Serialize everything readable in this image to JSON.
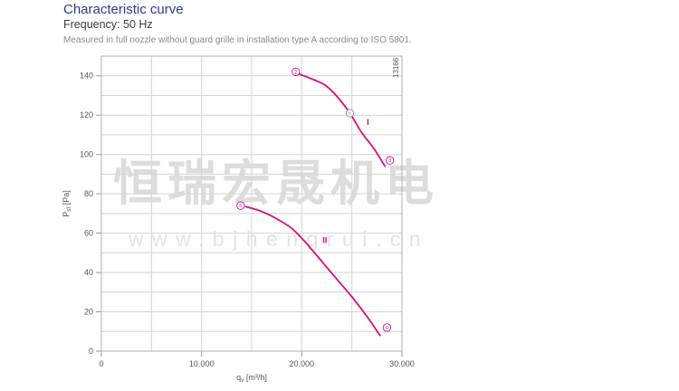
{
  "header": {
    "title": "Characteristic curve",
    "subtitle": "Frequency: 50 Hz",
    "note": "Measured in full nozzle without guard grille in installation type A according to ISO 5801."
  },
  "watermark": {
    "cjk": "恒瑞宏晟机电",
    "url": "www.bjhengrui.cn",
    "color_cjk": "#d8d8d8",
    "color_url": "#e0e0e0"
  },
  "chart_data": {
    "type": "line",
    "xlabel": "qv [m³/h]",
    "ylabel": "Psf [Pa]",
    "xlabel_parts": {
      "base": "q",
      "sub": "v",
      "rest": " [m³/h]"
    },
    "ylabel_parts": {
      "base": "P",
      "sub": "sf",
      "rest": " [Pa]"
    },
    "xlim": [
      0,
      30000
    ],
    "ylim": [
      0,
      150
    ],
    "x_grid_step": 5000,
    "y_grid_step": 10,
    "x_major_ticks": [
      0,
      10000,
      20000,
      30000
    ],
    "x_tick_labels": [
      "0",
      "10.000",
      "20.000",
      "30.000"
    ],
    "y_major_ticks": [
      0,
      20,
      40,
      60,
      80,
      100,
      120,
      140
    ],
    "grid": true,
    "figure_number": "13166",
    "colors": {
      "curve": "#d40f7d",
      "grid": "#d4d4d4",
      "border": "#b0b0b0",
      "axis": "#999999",
      "axis_text": "#555555",
      "title_blue": "#2b3a8f"
    },
    "series": [
      {
        "name": "I",
        "label_pos": [
          26600,
          115
        ],
        "points": [
          [
            19700,
            141
          ],
          [
            21200,
            138
          ],
          [
            22400,
            135
          ],
          [
            23600,
            129
          ],
          [
            24800,
            121
          ],
          [
            26000,
            111
          ],
          [
            27200,
            103
          ],
          [
            28300,
            94
          ]
        ]
      },
      {
        "name": "II",
        "label_pos": [
          22300,
          55
        ],
        "points": [
          [
            14400,
            73.5
          ],
          [
            16000,
            71
          ],
          [
            17600,
            67
          ],
          [
            19100,
            62
          ],
          [
            20600,
            54
          ],
          [
            22100,
            45
          ],
          [
            23600,
            36
          ],
          [
            25100,
            27
          ],
          [
            26600,
            17
          ],
          [
            27800,
            8
          ]
        ]
      }
    ],
    "markers": [
      {
        "label": "2",
        "x": 19400,
        "y": 142,
        "color": "#d40f7d"
      },
      {
        "label": "3",
        "x": 28800,
        "y": 97,
        "color": "#d40f7d"
      },
      {
        "label": "n",
        "x": 24800,
        "y": 121,
        "color": "#8f8f8f"
      },
      {
        "label": "5",
        "x": 13900,
        "y": 74,
        "color": "#d40f7d"
      },
      {
        "label": "6",
        "x": 28500,
        "y": 12,
        "color": "#d40f7d"
      }
    ]
  }
}
